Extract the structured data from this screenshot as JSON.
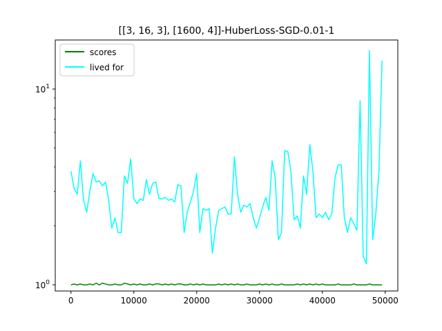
{
  "chart_data": {
    "type": "line",
    "title": "[[3, 16, 3], [1600, 4]]-HuberLoss-SGD-0.01-1",
    "xlabel": "",
    "ylabel": "",
    "xlim": [
      -2500,
      52000
    ],
    "ylim": [
      0.93,
      17.8
    ],
    "yscale": "log",
    "grid": false,
    "legend_position": "top-left",
    "x_ticks": [
      {
        "value": 0,
        "label": "0"
      },
      {
        "value": 10000,
        "label": "10000"
      },
      {
        "value": 20000,
        "label": "20000"
      },
      {
        "value": 30000,
        "label": "30000"
      },
      {
        "value": 40000,
        "label": "40000"
      },
      {
        "value": 50000,
        "label": "50000"
      }
    ],
    "y_ticks": [
      {
        "value": 1,
        "base": "10",
        "exp": "0"
      },
      {
        "value": 10,
        "base": "10",
        "exp": "1"
      }
    ],
    "series": [
      {
        "name": "scores",
        "color": "#008000",
        "x": [
          0,
          500,
          1000,
          1500,
          2000,
          2500,
          3000,
          3500,
          4000,
          4500,
          5000,
          5500,
          6000,
          6500,
          7000,
          7500,
          8000,
          8500,
          9000,
          9500,
          10000,
          10500,
          11000,
          11500,
          12000,
          12500,
          13000,
          13500,
          14000,
          14500,
          15000,
          15500,
          16000,
          16500,
          17000,
          17500,
          18000,
          18500,
          19000,
          19500,
          20000,
          20500,
          21000,
          21500,
          22000,
          22500,
          23000,
          23500,
          24000,
          24500,
          25000,
          25500,
          26000,
          26500,
          27000,
          27500,
          28000,
          28500,
          29000,
          29500,
          30000,
          30500,
          31000,
          31500,
          32000,
          32500,
          33000,
          33500,
          34000,
          34500,
          35000,
          35500,
          36000,
          36500,
          37000,
          37500,
          38000,
          38500,
          39000,
          39500,
          40000,
          40500,
          41000,
          41500,
          42000,
          42500,
          43000,
          43500,
          44000,
          44500,
          45000,
          45500,
          46000,
          46500,
          47000,
          47500,
          48000,
          48500,
          49000,
          49500
        ],
        "y": [
          1.0,
          1.01,
          1.0,
          1.01,
          1.0,
          1.0,
          1.01,
          1.0,
          1.02,
          1.0,
          1.02,
          1.01,
          1.0,
          1.0,
          1.01,
          1.0,
          1.0,
          1.02,
          1.01,
          1.0,
          1.01,
          1.0,
          1.01,
          1.0,
          1.0,
          1.01,
          1.0,
          1.01,
          1.01,
          1.0,
          1.01,
          1.0,
          1.01,
          1.0,
          1.01,
          1.01,
          1.0,
          1.0,
          1.01,
          1.0,
          1.01,
          1.0,
          1.01,
          1.0,
          1.0,
          1.0,
          1.0,
          1.01,
          1.0,
          1.01,
          1.0,
          1.01,
          1.0,
          1.01,
          1.0,
          1.0,
          1.01,
          1.0,
          1.0,
          1.0,
          1.01,
          1.0,
          1.01,
          1.0,
          1.01,
          1.0,
          1.0,
          1.01,
          1.0,
          1.0,
          1.0,
          1.0,
          1.01,
          1.0,
          1.01,
          1.0,
          1.01,
          1.0,
          1.01,
          1.0,
          1.01,
          1.0,
          1.0,
          1.0,
          1.0,
          1.01,
          1.0,
          1.0,
          1.0,
          1.0,
          1.01,
          1.0,
          1.0,
          1.0,
          1.0,
          1.01,
          1.0,
          1.0,
          1.0,
          1.0
        ]
      },
      {
        "name": "lived for",
        "color": "#00ffff",
        "x": [
          0,
          500,
          1000,
          1500,
          2000,
          2500,
          3000,
          3500,
          4000,
          4500,
          5000,
          5500,
          6000,
          6500,
          7000,
          7500,
          8000,
          8500,
          9000,
          9500,
          10000,
          10500,
          11000,
          11500,
          12000,
          12500,
          13000,
          13500,
          14000,
          14500,
          15000,
          15500,
          16000,
          16500,
          17000,
          17500,
          18000,
          18500,
          19000,
          19500,
          20000,
          20500,
          21000,
          21500,
          22000,
          22500,
          23000,
          23500,
          24000,
          24500,
          25000,
          25500,
          26000,
          26500,
          27000,
          27500,
          28000,
          28500,
          29000,
          29500,
          30000,
          30500,
          31000,
          31500,
          32000,
          32500,
          33000,
          33500,
          34000,
          34500,
          35000,
          35500,
          36000,
          36500,
          37000,
          37500,
          38000,
          38500,
          39000,
          39500,
          40000,
          40500,
          41000,
          41500,
          42000,
          42500,
          43000,
          43500,
          44000,
          44500,
          45000,
          45500,
          46000,
          46500,
          47000,
          47500,
          48000,
          48500,
          49000,
          49500
        ],
        "y": [
          3.8,
          3.1,
          2.9,
          4.3,
          2.7,
          2.35,
          3.0,
          3.7,
          3.35,
          3.4,
          3.2,
          3.35,
          2.7,
          1.95,
          2.2,
          1.85,
          1.85,
          3.6,
          3.3,
          4.4,
          2.75,
          2.6,
          2.75,
          2.7,
          3.45,
          2.9,
          3.3,
          3.35,
          2.75,
          2.75,
          2.8,
          2.7,
          2.75,
          2.65,
          3.25,
          3.2,
          1.85,
          2.35,
          2.65,
          3.0,
          3.7,
          1.85,
          2.45,
          2.4,
          2.45,
          1.45,
          1.95,
          2.4,
          2.45,
          2.5,
          2.3,
          2.3,
          4.5,
          2.9,
          2.35,
          2.55,
          2.5,
          2.6,
          2.2,
          1.95,
          2.2,
          2.5,
          2.8,
          2.4,
          4.3,
          3.5,
          1.7,
          1.85,
          4.85,
          4.8,
          3.8,
          2.15,
          2.25,
          1.95,
          3.6,
          2.9,
          5.2,
          3.8,
          2.2,
          2.3,
          2.2,
          2.35,
          2.15,
          2.3,
          3.5,
          4.1,
          4.1,
          2.2,
          1.85,
          2.2,
          2.05,
          1.9,
          8.7,
          1.4,
          1.28,
          15.7,
          1.7,
          2.3,
          3.8,
          14.0
        ]
      }
    ]
  }
}
